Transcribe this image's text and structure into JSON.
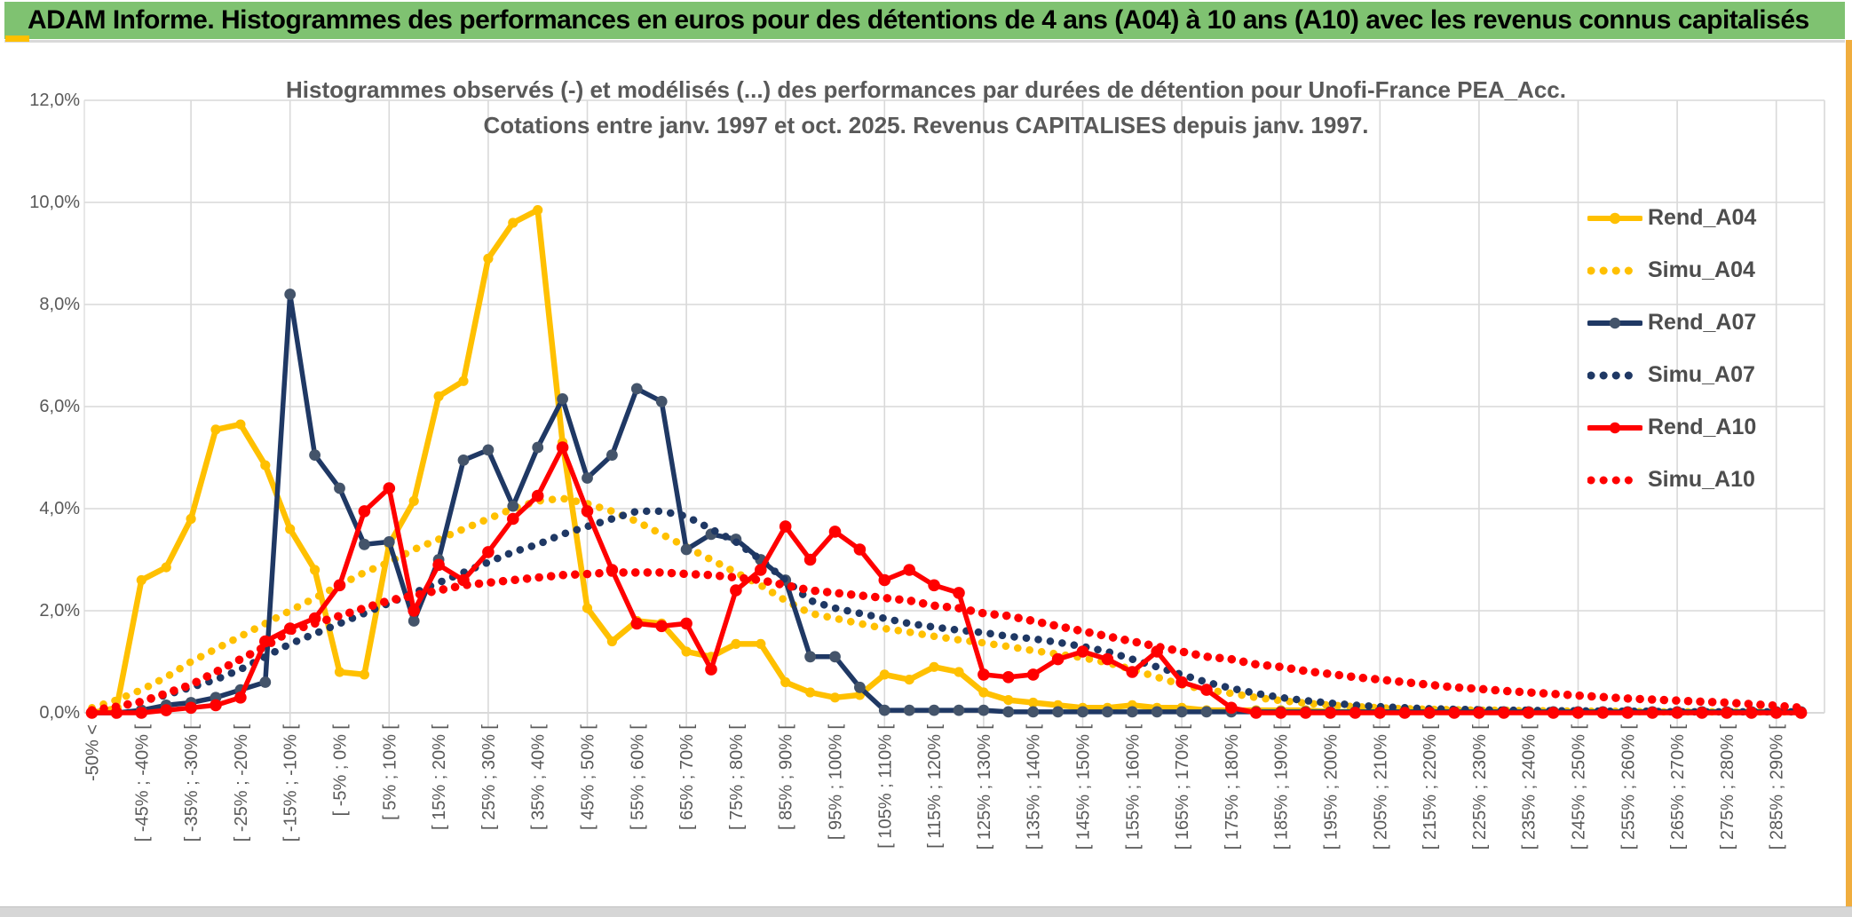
{
  "window": {
    "header_title": "ADAM Informe. Histogrammes des performances en euros pour des détentions de 4 ans (A04) à 10 ans (A10) avec les revenus connus capitalisés",
    "colors": {
      "header_bg": "#7fc271",
      "gold_accent": "#f0ad3e",
      "gridline": "#d9d9d9",
      "axis_text": "#595959",
      "title_text": "#595959",
      "legend_text": "#4d4d4d",
      "series_gold": "#ffc000",
      "series_navy": "#1f3864",
      "series_navy_marker": "#44546a",
      "series_red": "#ff0000"
    }
  },
  "chart_data": {
    "type": "line",
    "title_line1": "Histogrammes observés (-) et modélisés (...) des performances par durées de détention pour Unofi-France PEA_Acc.",
    "title_line2": "Cotations entre janv. 1997 et oct. 2025. Revenus CAPITALISES depuis janv. 1997.",
    "ylabel": "",
    "xlabel": "",
    "ylim": [
      0,
      12
    ],
    "y_tick_labels": [
      "0,0%",
      "2,0%",
      "4,0%",
      "6,0%",
      "8,0%",
      "10,0%",
      "12,0%"
    ],
    "grid": true,
    "legend_position": "right-inside",
    "n_bins": 70,
    "bins_per_tick": 2,
    "x_tick_labels": [
      "-50% <",
      "[ -45% ; -40% [",
      "[ -35% ; -30% [",
      "[ -25% ; -20% [",
      "[ -15% ; -10% [",
      "[ -5% ; 0% [",
      "[ 5% ; 10% [",
      "[ 15% ; 20% [",
      "[ 25% ; 30% [",
      "[ 35% ; 40% [",
      "[ 45% ; 50% [",
      "[ 55% ; 60% [",
      "[ 65% ; 70% [",
      "[ 75% ; 80% [",
      "[ 85% ; 90% [",
      "[ 95% ; 100% [",
      "[ 105% ; 110% [",
      "[ 115% ; 120% [",
      "[ 125% ; 130% [",
      "[ 135% ; 140% [",
      "[ 145% ; 150% [",
      "[ 155% ; 160% [",
      "[ 165% ; 170% [",
      "[ 175% ; 180% [",
      "[ 185% ; 190% [",
      "[ 195% ; 200% [",
      "[ 205% ; 210% [",
      "[ 215% ; 220% [",
      "[ 225% ; 230% [",
      "[ 235% ; 240% [",
      "[ 245% ; 250% [",
      "[ 255% ; 260% [",
      "[ 265% ; 270% [",
      "[ 275% ; 280% [",
      "[ 285% ; 290% ["
    ],
    "series": [
      {
        "name": "Rend_A04",
        "style": "solid",
        "color": "#ffc000",
        "marker_color": "#ffc000",
        "values": [
          0,
          0.1,
          2.6,
          2.85,
          3.8,
          5.55,
          5.65,
          4.85,
          3.6,
          2.8,
          0.8,
          0.75,
          3.3,
          4.15,
          6.2,
          6.5,
          8.9,
          9.6,
          9.85,
          5.3,
          2.05,
          1.4,
          1.8,
          1.75,
          1.2,
          1.1,
          1.35,
          1.35,
          0.6,
          0.4,
          0.3,
          0.35,
          0.75,
          0.65,
          0.9,
          0.8,
          0.4,
          0.25,
          0.2,
          0.15,
          0.1,
          0.1,
          0.15,
          0.1,
          0.1,
          0.05,
          0.05,
          0.05,
          0.05,
          0.05,
          0.02,
          0.02,
          0.02,
          0.02,
          0.02,
          0.02,
          0.02,
          0.02,
          0.02,
          0.02,
          0.02,
          0.02,
          0.02,
          0.02,
          0.02,
          0.02,
          0.02,
          0.02,
          0.02,
          0.02
        ]
      },
      {
        "name": "Simu_A04",
        "style": "dotted",
        "color": "#ffc000",
        "values": [
          0.1,
          0.25,
          0.45,
          0.7,
          1.0,
          1.25,
          1.5,
          1.75,
          2.0,
          2.25,
          2.5,
          2.75,
          2.95,
          3.2,
          3.4,
          3.6,
          3.8,
          4.0,
          4.15,
          4.2,
          4.1,
          3.95,
          3.75,
          3.5,
          3.25,
          3.0,
          2.75,
          2.5,
          2.2,
          1.95,
          1.85,
          1.75,
          1.65,
          1.58,
          1.5,
          1.43,
          1.37,
          1.3,
          1.22,
          1.15,
          1.08,
          0.98,
          0.85,
          0.7,
          0.55,
          0.45,
          0.38,
          0.3,
          0.24,
          0.19,
          0.15,
          0.12,
          0.1,
          0.08,
          0.07,
          0.06,
          0.05,
          0.05,
          0.04,
          0.04,
          0.03,
          0.03,
          0.03,
          0.02,
          0.02,
          0.02,
          0.02,
          0.02,
          0.02,
          0.02
        ]
      },
      {
        "name": "Rend_A07",
        "style": "solid",
        "color": "#1f3864",
        "marker_color": "#44546a",
        "values": [
          0,
          0,
          0.05,
          0.15,
          0.2,
          0.3,
          0.45,
          0.6,
          8.2,
          5.05,
          4.4,
          3.3,
          3.35,
          1.8,
          3.0,
          4.95,
          5.15,
          4.05,
          5.2,
          6.15,
          4.6,
          5.05,
          6.35,
          6.1,
          3.2,
          3.5,
          3.4,
          3.0,
          2.6,
          1.1,
          1.1,
          0.5,
          0.05,
          0.05,
          0.05,
          0.05,
          0.05,
          0.02,
          0.02,
          0.02,
          0.02,
          0.02,
          0.02,
          0.02,
          0.02,
          0.02,
          0.02,
          0.02,
          0.02,
          0.02,
          0.02,
          0.02,
          0.02,
          0.02,
          0.02,
          0.02,
          0.02,
          0.02,
          0.02,
          0.02,
          0.02,
          0.02,
          0.02,
          0.02,
          0.02,
          0.02,
          0.02,
          0.02,
          0.02,
          0.02
        ]
      },
      {
        "name": "Simu_A07",
        "style": "dotted",
        "color": "#1f3864",
        "values": [
          0.05,
          0.12,
          0.22,
          0.35,
          0.5,
          0.65,
          0.85,
          1.1,
          1.35,
          1.55,
          1.75,
          1.95,
          2.15,
          2.35,
          2.55,
          2.75,
          2.95,
          3.15,
          3.3,
          3.5,
          3.65,
          3.8,
          3.95,
          3.95,
          3.85,
          3.6,
          3.35,
          3.0,
          2.6,
          2.2,
          2.05,
          1.95,
          1.85,
          1.75,
          1.68,
          1.62,
          1.57,
          1.5,
          1.45,
          1.38,
          1.3,
          1.2,
          1.05,
          0.9,
          0.75,
          0.6,
          0.48,
          0.38,
          0.3,
          0.24,
          0.19,
          0.15,
          0.12,
          0.1,
          0.08,
          0.07,
          0.06,
          0.05,
          0.05,
          0.04,
          0.04,
          0.03,
          0.03,
          0.03,
          0.02,
          0.02,
          0.02,
          0.02,
          0.02,
          0.02
        ]
      },
      {
        "name": "Rend_A10",
        "style": "solid",
        "color": "#ff0000",
        "marker_color": "#ff0000",
        "values": [
          0,
          0,
          0,
          0.05,
          0.1,
          0.15,
          0.3,
          1.4,
          1.65,
          1.85,
          2.5,
          3.95,
          4.4,
          2.0,
          2.9,
          2.6,
          3.15,
          3.8,
          4.25,
          5.2,
          3.95,
          2.8,
          1.75,
          1.7,
          1.75,
          0.85,
          2.4,
          2.8,
          3.65,
          3.0,
          3.55,
          3.2,
          2.6,
          2.8,
          2.5,
          2.35,
          0.75,
          0.7,
          0.75,
          1.05,
          1.2,
          1.05,
          0.8,
          1.2,
          0.6,
          0.45,
          0.1,
          0,
          0,
          0,
          0,
          0,
          0,
          0,
          0,
          0,
          0,
          0,
          0,
          0,
          0,
          0,
          0,
          0,
          0,
          0,
          0,
          0,
          0,
          0
        ]
      },
      {
        "name": "Simu_A10",
        "style": "dotted",
        "color": "#ff0000",
        "values": [
          0.05,
          0.12,
          0.22,
          0.38,
          0.55,
          0.8,
          1.05,
          1.3,
          1.6,
          1.75,
          1.9,
          2.05,
          2.2,
          2.3,
          2.4,
          2.5,
          2.55,
          2.6,
          2.65,
          2.7,
          2.72,
          2.75,
          2.75,
          2.75,
          2.72,
          2.7,
          2.65,
          2.6,
          2.5,
          2.4,
          2.35,
          2.3,
          2.25,
          2.2,
          2.1,
          2.05,
          1.95,
          1.9,
          1.8,
          1.7,
          1.6,
          1.5,
          1.4,
          1.3,
          1.2,
          1.1,
          1.05,
          0.95,
          0.9,
          0.82,
          0.76,
          0.7,
          0.65,
          0.6,
          0.55,
          0.5,
          0.47,
          0.43,
          0.4,
          0.37,
          0.34,
          0.31,
          0.28,
          0.26,
          0.24,
          0.22,
          0.2,
          0.17,
          0.14,
          0.1
        ]
      }
    ]
  }
}
